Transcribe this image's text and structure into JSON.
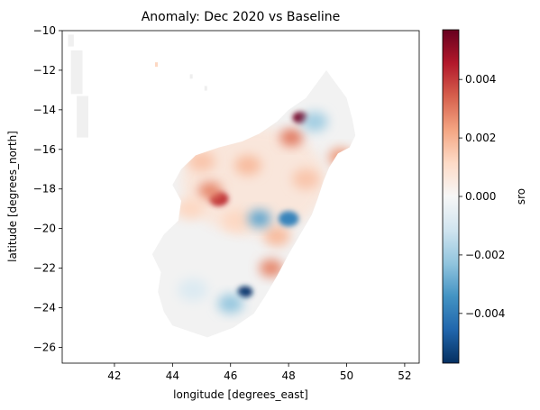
{
  "chart_data": {
    "type": "heatmap",
    "title": "Anomaly: Dec 2020 vs Baseline",
    "xlabel": "longitude [degrees_east]",
    "ylabel": "latitude [degrees_north]",
    "colorbar_label": "sro",
    "xlim": [
      40.2,
      52.5
    ],
    "ylim": [
      -26.8,
      -10.0
    ],
    "x_ticks": [
      {
        "value": 42,
        "label": "42"
      },
      {
        "value": 44,
        "label": "44"
      },
      {
        "value": 46,
        "label": "46"
      },
      {
        "value": 48,
        "label": "48"
      },
      {
        "value": 50,
        "label": "50"
      },
      {
        "value": 52,
        "label": "52"
      }
    ],
    "y_ticks": [
      {
        "value": -10,
        "label": "−10"
      },
      {
        "value": -12,
        "label": "−12"
      },
      {
        "value": -14,
        "label": "−14"
      },
      {
        "value": -16,
        "label": "−16"
      },
      {
        "value": -18,
        "label": "−18"
      },
      {
        "value": -20,
        "label": "−20"
      },
      {
        "value": -22,
        "label": "−22"
      },
      {
        "value": -24,
        "label": "−24"
      },
      {
        "value": -26,
        "label": "−26"
      }
    ],
    "colorbar": {
      "vmin": -0.0057,
      "vmax": 0.0057,
      "colormap": "RdBu_r",
      "ticks": [
        {
          "value": 0.004,
          "label": "0.004"
        },
        {
          "value": 0.002,
          "label": "0.002"
        },
        {
          "value": 0.0,
          "label": "0.000"
        },
        {
          "value": -0.002,
          "label": "−0.002"
        },
        {
          "value": -0.004,
          "label": "−0.004"
        }
      ]
    },
    "grid": false,
    "land_polygon_lonlat": [
      [
        49.3,
        -12.0
      ],
      [
        49.6,
        -12.6
      ],
      [
        50.0,
        -13.4
      ],
      [
        50.2,
        -14.5
      ],
      [
        50.3,
        -15.3
      ],
      [
        50.1,
        -15.9
      ],
      [
        49.7,
        -16.2
      ],
      [
        49.4,
        -16.9
      ],
      [
        49.2,
        -17.6
      ],
      [
        49.0,
        -18.5
      ],
      [
        48.8,
        -19.3
      ],
      [
        48.4,
        -20.3
      ],
      [
        48.0,
        -21.3
      ],
      [
        47.6,
        -22.4
      ],
      [
        47.2,
        -23.4
      ],
      [
        46.8,
        -24.3
      ],
      [
        46.1,
        -25.0
      ],
      [
        45.2,
        -25.5
      ],
      [
        44.6,
        -25.2
      ],
      [
        44.0,
        -24.9
      ],
      [
        43.7,
        -24.2
      ],
      [
        43.5,
        -23.2
      ],
      [
        43.6,
        -22.2
      ],
      [
        43.3,
        -21.3
      ],
      [
        43.7,
        -20.3
      ],
      [
        44.2,
        -19.6
      ],
      [
        44.3,
        -18.6
      ],
      [
        44.0,
        -17.8
      ],
      [
        44.3,
        -17.0
      ],
      [
        44.8,
        -16.3
      ],
      [
        45.6,
        -15.9
      ],
      [
        46.4,
        -15.6
      ],
      [
        47.0,
        -15.2
      ],
      [
        47.6,
        -14.6
      ],
      [
        48.0,
        -14.0
      ],
      [
        48.6,
        -13.4
      ],
      [
        49.0,
        -12.6
      ]
    ],
    "anomaly_features": [
      {
        "lon": 48.4,
        "lat": -14.4,
        "value": 0.0055
      },
      {
        "lon": 45.6,
        "lat": -18.5,
        "value": 0.0042
      },
      {
        "lon": 48.1,
        "lat": -15.4,
        "value": 0.003
      },
      {
        "lon": 45.3,
        "lat": -18.1,
        "value": 0.0028
      },
      {
        "lon": 47.4,
        "lat": -22.0,
        "value": 0.0028
      },
      {
        "lon": 49.8,
        "lat": -16.4,
        "value": 0.0025
      },
      {
        "lon": 46.6,
        "lat": -16.8,
        "value": 0.0018
      },
      {
        "lon": 45.0,
        "lat": -16.6,
        "value": 0.0016
      },
      {
        "lon": 47.6,
        "lat": -20.4,
        "value": 0.0018
      },
      {
        "lon": 48.6,
        "lat": -17.5,
        "value": 0.0016
      },
      {
        "lon": 46.2,
        "lat": -19.6,
        "value": 0.0012
      },
      {
        "lon": 44.6,
        "lat": -19.0,
        "value": 0.0012
      },
      {
        "lon": 48.0,
        "lat": -19.5,
        "value": -0.0038
      },
      {
        "lon": 46.5,
        "lat": -23.2,
        "value": -0.0055
      },
      {
        "lon": 47.0,
        "lat": -19.5,
        "value": -0.003
      },
      {
        "lon": 48.9,
        "lat": -14.6,
        "value": -0.002
      },
      {
        "lon": 46.0,
        "lat": -23.8,
        "value": -0.0022
      },
      {
        "lon": 44.7,
        "lat": -23.1,
        "value": -0.0008
      }
    ]
  }
}
